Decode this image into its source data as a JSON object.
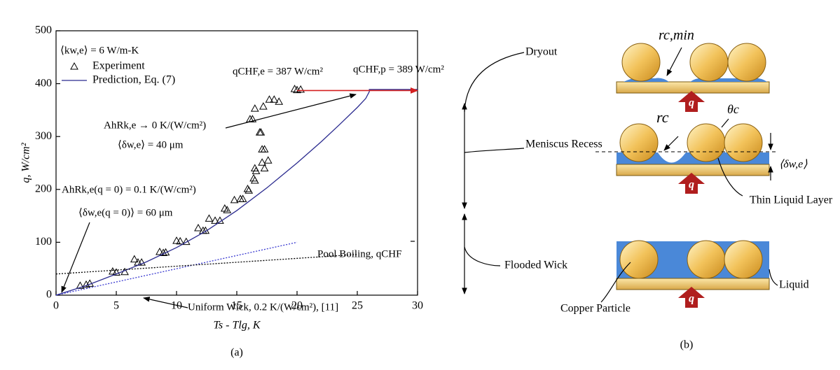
{
  "chart_data": {
    "type": "scatter",
    "x_label": "Ts - Tlg, K",
    "y_label": "q, W/cm²",
    "caption": "(a)",
    "xlim": [
      0,
      30
    ],
    "xticks": [
      0,
      5,
      10,
      15,
      20,
      25,
      30
    ],
    "ylim": [
      0,
      500
    ],
    "yticks": [
      0,
      100,
      200,
      300,
      400,
      500
    ],
    "annotations": [
      "⟨kw,e⟩ = 6 W/m-K",
      "qCHF,p = 389 W/cm²",
      "AhRk,e → 0 K/(W/cm²)",
      "⟨δw,e⟩ = 40 μm",
      "AhRk,e(q = 0) = 0.1 K/(W/cm²)",
      "⟨δw,e(q = 0)⟩ = 60 μm"
    ],
    "series": [
      {
        "name": "Experiment",
        "color": "#000000",
        "marker": "triangle",
        "in_legend": true,
        "x": [
          2.0,
          2.5,
          2.8,
          4.7,
          5.0,
          5.7,
          6.5,
          6.8,
          7.1,
          8.6,
          8.9,
          9.1,
          10.0,
          10.3,
          10.8,
          11.8,
          12.2,
          12.4,
          12.7,
          13.2,
          13.6,
          14.0,
          14.2,
          14.8,
          15.3,
          15.5,
          15.9,
          16.0,
          16.4,
          16.5,
          16.5,
          16.6,
          17.1,
          17.3,
          17.6,
          17.1,
          17.3,
          16.9,
          17.0,
          16.1,
          16.3,
          16.5,
          17.2,
          17.7,
          18.1,
          18.5,
          19.8,
          20.0,
          20.3
        ],
        "values": [
          18,
          20,
          22,
          45,
          43,
          44,
          68,
          62,
          62,
          82,
          80,
          81,
          103,
          102,
          101,
          127,
          122,
          122,
          145,
          141,
          141,
          164,
          161,
          180,
          182,
          182,
          201,
          198,
          221,
          217,
          240,
          235,
          251,
          240,
          255,
          276,
          276,
          308,
          308,
          333,
          333,
          353,
          357,
          370,
          370,
          366,
          390,
          388,
          389
        ]
      },
      {
        "name": "Prediction, Eq. (7)",
        "color": "#2b2b8f",
        "style": "solid",
        "in_legend": true,
        "x": [
          0,
          2.5,
          5,
          7.5,
          10,
          12.5,
          15,
          17.5,
          20,
          22,
          23.5,
          25,
          25.7,
          26,
          26,
          30
        ],
        "values": [
          0,
          18,
          40,
          63,
          90,
          122,
          160,
          203,
          250,
          290,
          322,
          355,
          372,
          385,
          389,
          389
        ]
      },
      {
        "name": "Uniform Wick, 0.2 K/(W/cm²), [11]",
        "color": "#3838d0",
        "style": "dotted",
        "in_legend": false,
        "x": [
          0,
          20
        ],
        "values": [
          0,
          100
        ]
      },
      {
        "name": "Pool Boiling, qCHF",
        "color": "#000000",
        "style": "dotted",
        "in_legend": false,
        "x": [
          0,
          25
        ],
        "values": [
          40,
          77
        ]
      },
      {
        "name": "qCHF,e = 387 W/cm²",
        "color": "#d42020",
        "style": "arrow",
        "in_legend": false,
        "x": [
          20,
          30
        ],
        "values": [
          387,
          387
        ]
      }
    ]
  },
  "diagram": {
    "stages": [
      "Dryout",
      "Meniscus Recess",
      "Flooded Wick"
    ],
    "heat_labels": [
      "q",
      "q",
      "q"
    ],
    "labels": [
      "rc,min",
      "rc",
      "θc",
      "⟨δw,e⟩",
      "Thin Liquid Layer",
      "Liquid",
      "Copper Particle"
    ],
    "caption": "(b)"
  }
}
